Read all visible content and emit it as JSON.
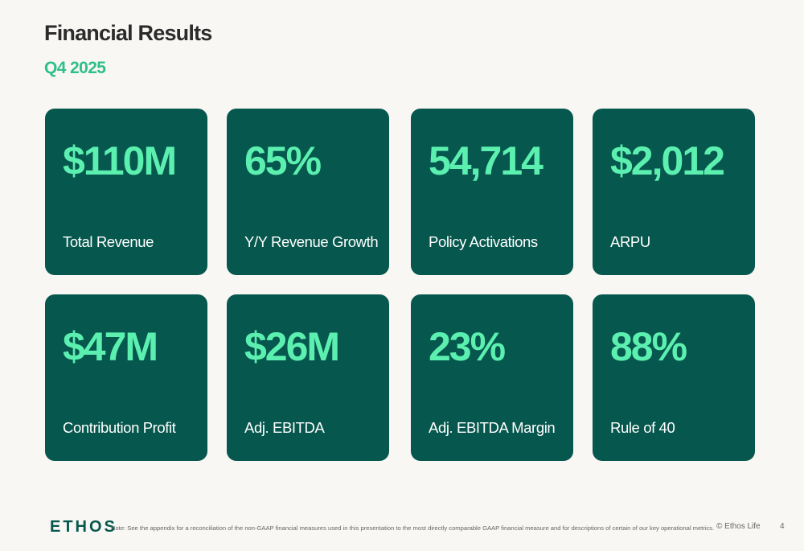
{
  "header": {
    "title": "Financial Results",
    "subtitle": "Q4 2025"
  },
  "cards": [
    {
      "value": "$110M",
      "label": "Total Revenue"
    },
    {
      "value": "65%",
      "label": "Y/Y Revenue Growth"
    },
    {
      "value": "54,714",
      "label": "Policy Activations"
    },
    {
      "value": "$2,012",
      "label": "ARPU"
    },
    {
      "value": "$47M",
      "label": "Contribution Profit"
    },
    {
      "value": "$26M",
      "label": "Adj. EBITDA"
    },
    {
      "value": "23%",
      "label": "Adj. EBITDA Margin"
    },
    {
      "value": "88%",
      "label": "Rule of 40"
    }
  ],
  "footer": {
    "logo": "ETHOS",
    "note": "Note: See the appendix for a reconciliation of the non-GAAP financial measures used in this presentation to the most directly comparable GAAP financial measure and for descriptions of certain of our key operational metrics.",
    "copyright": "© Ethos Life",
    "page": "4"
  }
}
